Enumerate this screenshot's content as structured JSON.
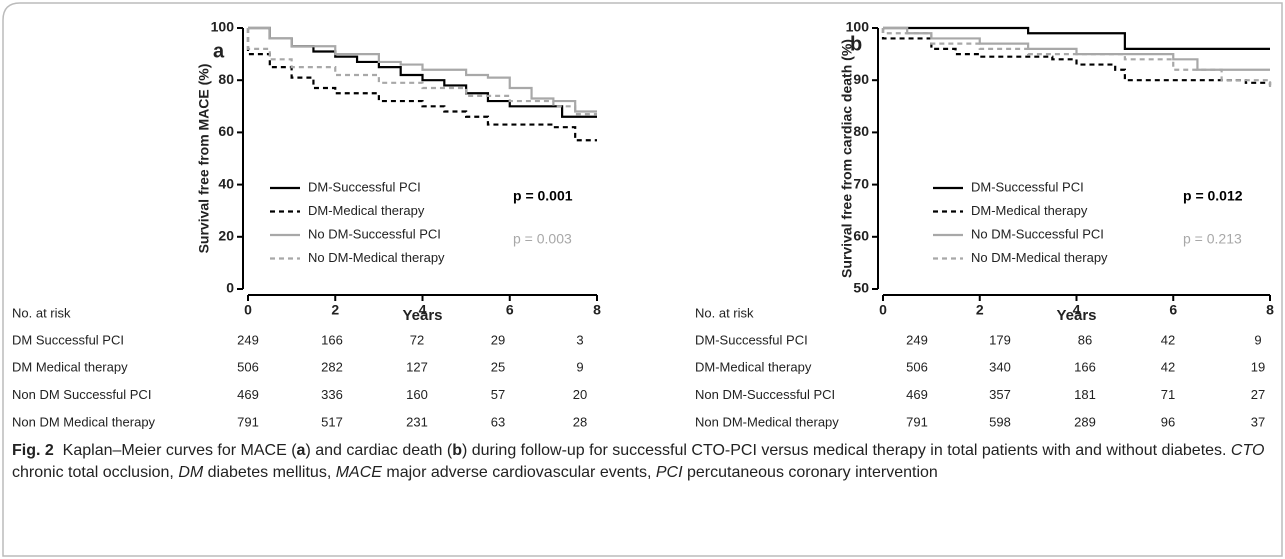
{
  "chart_data": [
    {
      "type": "step",
      "panel": "a",
      "ylabel": "Survival free from MACE (%)",
      "xlabel": "Years",
      "xlim": [
        0,
        8
      ],
      "xticks": [
        0,
        2,
        4,
        6,
        8
      ],
      "ylim": [
        0,
        100
      ],
      "yticks": [
        0,
        20,
        40,
        60,
        80,
        100
      ],
      "series": [
        {
          "name": "DM-Successful PCI",
          "color": "#000000",
          "dashed": false,
          "x": [
            0,
            0.5,
            1,
            1.5,
            2,
            2.5,
            3,
            3.5,
            4,
            4.5,
            5,
            5.5,
            6,
            7.2,
            8
          ],
          "values": [
            100,
            96,
            93,
            91,
            89,
            87,
            85,
            82,
            80,
            78,
            75,
            72,
            70,
            66,
            66
          ]
        },
        {
          "name": "DM-Medical therapy",
          "color": "#000000",
          "dashed": true,
          "x": [
            0,
            0.5,
            1,
            1.5,
            2,
            3,
            4,
            4.5,
            5,
            5.5,
            7,
            7.5,
            8
          ],
          "values": [
            90,
            85,
            81,
            77,
            75,
            72,
            70,
            68,
            66,
            63,
            62,
            57,
            57
          ]
        },
        {
          "name": "No DM-Successful PCI",
          "color": "#a8a8a8",
          "dashed": false,
          "x": [
            0,
            0.5,
            1,
            2,
            3,
            3.5,
            4,
            5,
            5.5,
            6,
            6.5,
            7,
            7.5,
            8
          ],
          "values": [
            100,
            96,
            93,
            90,
            87,
            86,
            84,
            82,
            81,
            77,
            73,
            72,
            68,
            68
          ]
        },
        {
          "name": "No DM-Medical therapy",
          "color": "#a8a8a8",
          "dashed": true,
          "x": [
            0,
            0.5,
            1,
            2,
            3,
            4,
            5,
            6,
            7,
            7.5,
            8
          ],
          "values": [
            92,
            88,
            85,
            82,
            79,
            77,
            74,
            72,
            70,
            67,
            67
          ]
        }
      ],
      "annotations": [
        {
          "text": "p = 0.001",
          "color": "#000000",
          "bold": true
        },
        {
          "text": "p = 0.003",
          "color": "#a8a8a8",
          "bold": false
        }
      ]
    },
    {
      "type": "step",
      "panel": "b",
      "ylabel": "Survival free from cardiac death (%)",
      "xlabel": "Years",
      "xlim": [
        0,
        8
      ],
      "xticks": [
        0,
        2,
        4,
        6,
        8
      ],
      "ylim": [
        50,
        100
      ],
      "yticks": [
        50,
        60,
        70,
        80,
        90,
        100
      ],
      "series": [
        {
          "name": "DM-Successful PCI",
          "color": "#000000",
          "dashed": false,
          "x": [
            0,
            2,
            3,
            4.8,
            5,
            8
          ],
          "values": [
            100,
            100,
            99,
            99,
            96,
            96
          ]
        },
        {
          "name": "DM-Medical therapy",
          "color": "#000000",
          "dashed": true,
          "x": [
            0,
            1,
            1.5,
            2,
            3.5,
            4,
            4.8,
            5,
            7,
            7.5,
            8
          ],
          "values": [
            98,
            96,
            95,
            94.5,
            94,
            93,
            92,
            90,
            90,
            89.5,
            89
          ]
        },
        {
          "name": "No DM-Successful PCI",
          "color": "#a8a8a8",
          "dashed": false,
          "x": [
            0,
            0.5,
            1,
            2,
            3,
            4,
            5,
            6,
            6.5,
            8
          ],
          "values": [
            100,
            99,
            98,
            97,
            96,
            95,
            95,
            94,
            92,
            92
          ]
        },
        {
          "name": "No DM-Medical therapy",
          "color": "#a8a8a8",
          "dashed": true,
          "x": [
            0,
            1,
            2,
            3,
            4,
            5,
            6,
            7,
            8
          ],
          "values": [
            99,
            97,
            96,
            95,
            95,
            94,
            92,
            90,
            88
          ]
        }
      ],
      "annotations": [
        {
          "text": "p = 0.012",
          "color": "#000000",
          "bold": true
        },
        {
          "text": "p = 0.213",
          "color": "#a8a8a8",
          "bold": false
        }
      ]
    }
  ],
  "risk_tables": [
    {
      "title": "No. at risk",
      "rows": [
        {
          "label": "DM Successful PCI",
          "values": [
            249,
            166,
            72,
            29,
            3
          ]
        },
        {
          "label": "DM Medical therapy",
          "values": [
            506,
            282,
            127,
            25,
            9
          ]
        },
        {
          "label": "Non DM Successful PCI",
          "values": [
            469,
            336,
            160,
            57,
            20
          ]
        },
        {
          "label": "Non DM Medical therapy",
          "values": [
            791,
            517,
            231,
            63,
            28
          ]
        }
      ]
    },
    {
      "title": "No. at risk",
      "rows": [
        {
          "label": "DM-Successful PCI",
          "values": [
            249,
            179,
            86,
            42,
            9
          ]
        },
        {
          "label": "DM-Medical therapy",
          "values": [
            506,
            340,
            166,
            42,
            19
          ]
        },
        {
          "label": "Non DM-Successful PCI",
          "values": [
            469,
            357,
            181,
            71,
            27
          ]
        },
        {
          "label": "Non DM-Medical therapy",
          "values": [
            791,
            598,
            289,
            96,
            37
          ]
        }
      ]
    }
  ],
  "caption": {
    "label": "Fig. 2",
    "parts": [
      "Kaplan–Meier curves for MACE (",
      "a",
      ") and cardiac death (",
      "b",
      ") during follow-up for successful CTO-PCI versus medical therapy in total patients with and without diabetes. ",
      "CTO",
      " chronic total occlusion, ",
      "DM",
      " diabetes mellitus, ",
      "MACE",
      " major adverse cardiovascular events, ",
      "PCI",
      " percutaneous coronary intervention"
    ]
  }
}
